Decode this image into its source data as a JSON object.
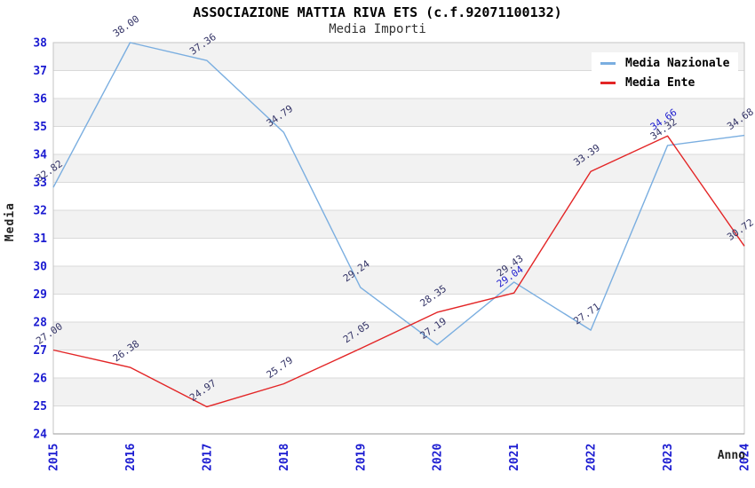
{
  "chart_data": {
    "type": "line",
    "title": "ASSOCIAZIONE MATTIA RIVA ETS (c.f.92071100132)",
    "subtitle": "Media Importi",
    "xlabel": "Anno",
    "ylabel": "Media",
    "x": [
      2015,
      2016,
      2017,
      2018,
      2019,
      2020,
      2021,
      2022,
      2023,
      2024
    ],
    "ylim": [
      24,
      38
    ],
    "y_tick_step": 1,
    "grid": true,
    "legend_position": "top-right-inside",
    "series": [
      {
        "name": "Media Nazionale",
        "color": "#7aaee0",
        "values": [
          32.82,
          38.0,
          37.36,
          34.79,
          29.24,
          27.19,
          29.43,
          27.71,
          34.32,
          34.68
        ]
      },
      {
        "name": "Media Ente",
        "color": "#e32526",
        "values": [
          27.0,
          26.38,
          24.97,
          25.79,
          27.05,
          28.35,
          29.04,
          33.39,
          34.66,
          30.72
        ]
      }
    ],
    "highlighted_labels": [
      {
        "series": "Media Ente",
        "year": 2021
      },
      {
        "series": "Media Ente",
        "year": 2023
      }
    ],
    "style": {
      "band_color": "#f2f2f2",
      "gridline_color": "#d9d9d9",
      "plot_border_color": "#c4c4c4",
      "x_axis_line_color": "#999999",
      "axis_tick_color": "#1b1bd1",
      "data_label_color": "#333366",
      "data_label_highlight_color": "#2020d0"
    }
  }
}
